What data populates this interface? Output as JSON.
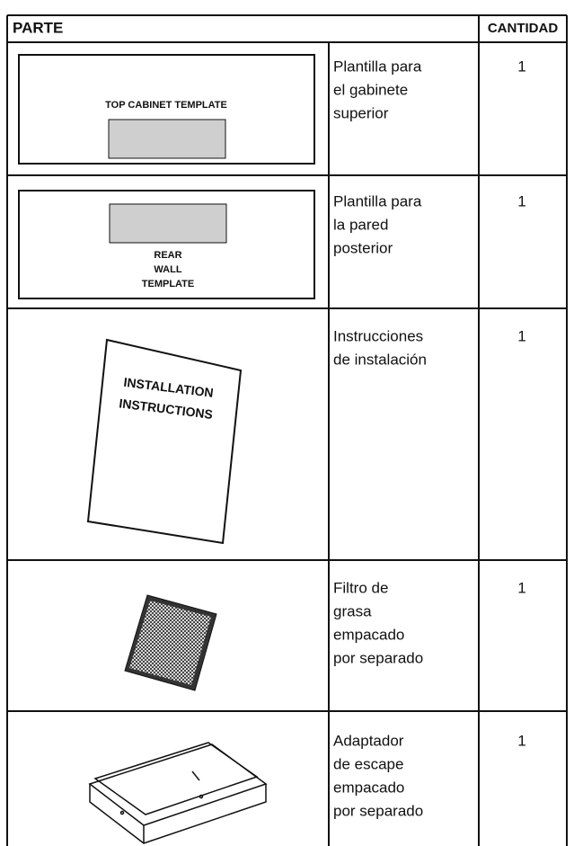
{
  "table": {
    "header": [
      "PARTE",
      "CANTIDAD"
    ],
    "rows": [
      {
        "image_label": [
          "TOP CABINET TEMPLATE"
        ],
        "description": [
          "Plantilla para",
          "el gabinete",
          "superior"
        ],
        "quantity": 1
      },
      {
        "image_label": [
          "REAR",
          "WALL",
          "TEMPLATE"
        ],
        "description": [
          "Plantilla para",
          "la pared",
          "posterior"
        ],
        "quantity": 1
      },
      {
        "image_label": [
          "INSTALLATION",
          "INSTRUCTIONS"
        ],
        "description": [
          "Instrucciones",
          "de instalación"
        ],
        "quantity": 1
      },
      {
        "description": [
          "Filtro de",
          "grasa",
          "empacado",
          "por separado"
        ],
        "quantity": 1
      },
      {
        "description": [
          "Adaptador",
          "de escape",
          "empacado",
          "por separado"
        ],
        "quantity": 1
      }
    ]
  }
}
